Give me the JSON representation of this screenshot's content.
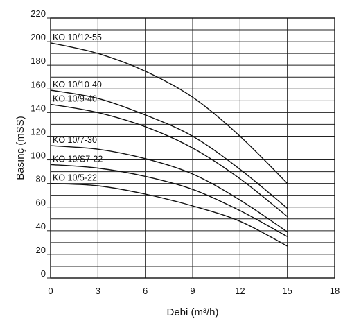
{
  "chart_data": {
    "type": "line",
    "title": "",
    "xlabel": "Debi (m³/h)",
    "ylabel": "Basınç (mSS)",
    "xlim": [
      0,
      18
    ],
    "ylim": [
      0,
      220
    ],
    "x_ticks": [
      0,
      3,
      6,
      9,
      12,
      15,
      18
    ],
    "y_ticks": [
      0,
      20,
      40,
      60,
      80,
      100,
      120,
      140,
      160,
      180,
      200,
      220
    ],
    "y_minor_step": 10,
    "grid": true,
    "legend": "none",
    "series": [
      {
        "name": "KO 10/12-55",
        "x": [
          0,
          3,
          6,
          9,
          12,
          15
        ],
        "y": [
          199,
          190,
          175,
          153,
          120,
          80
        ]
      },
      {
        "name": "KO 10/10-40",
        "x": [
          0,
          3,
          6,
          9,
          12,
          15
        ],
        "y": [
          159,
          152,
          138,
          120,
          92,
          59
        ]
      },
      {
        "name": "KO 10/9-40",
        "x": [
          0,
          3,
          6,
          9,
          12,
          15
        ],
        "y": [
          147,
          140,
          128,
          110,
          84,
          52
        ]
      },
      {
        "name": "KO 10/7-30",
        "x": [
          0,
          3,
          6,
          9,
          12,
          15
        ],
        "y": [
          112,
          109,
          101,
          88,
          66,
          39
        ]
      },
      {
        "name": "KO 10/S7-22",
        "x": [
          0,
          3,
          6,
          9,
          12,
          15
        ],
        "y": [
          96,
          93,
          86,
          75,
          57,
          35
        ]
      },
      {
        "name": "KO 10/5-22",
        "x": [
          0,
          3,
          6,
          9,
          12,
          15
        ],
        "y": [
          80,
          78,
          71,
          61,
          48,
          27
        ]
      }
    ]
  }
}
